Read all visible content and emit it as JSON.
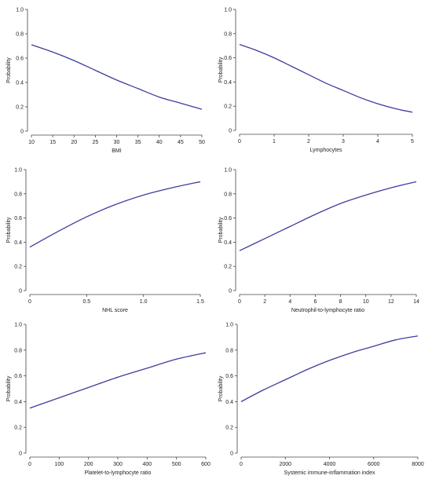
{
  "chart_data": [
    {
      "type": "line",
      "xlabel": "BMI",
      "ylabel": "Probability",
      "xlim": [
        10,
        50
      ],
      "ylim": [
        0,
        1.0
      ],
      "xticks": [
        "10",
        "15",
        "20",
        "25",
        "30",
        "35",
        "40",
        "45",
        "50"
      ],
      "yticks": [
        "0",
        "0.2",
        "0.4",
        "0.6",
        "0.8",
        "1.0"
      ],
      "series": [
        {
          "x": [
            10,
            15,
            20,
            25,
            30,
            35,
            40,
            45,
            50
          ],
          "y": [
            0.71,
            0.65,
            0.58,
            0.5,
            0.42,
            0.35,
            0.28,
            0.23,
            0.18
          ]
        }
      ]
    },
    {
      "type": "line",
      "xlabel": "Lymphocytes",
      "ylabel": "Probability",
      "xlim": [
        0,
        5
      ],
      "ylim": [
        0,
        1.0
      ],
      "xticks": [
        "0",
        "1",
        "2",
        "3",
        "4",
        "5"
      ],
      "yticks": [
        "0",
        "0.2",
        "0.4",
        "0.6",
        "0.8",
        "1.0"
      ],
      "series": [
        {
          "x": [
            0,
            0.5,
            1,
            1.5,
            2,
            2.5,
            3,
            3.5,
            4,
            4.5,
            5
          ],
          "y": [
            0.71,
            0.66,
            0.6,
            0.53,
            0.46,
            0.39,
            0.33,
            0.27,
            0.22,
            0.18,
            0.15
          ]
        }
      ]
    },
    {
      "type": "line",
      "xlabel": "NHL score",
      "ylabel": "Probability",
      "xlim": [
        0,
        1.5
      ],
      "ylim": [
        0,
        1.0
      ],
      "xticks": [
        "0",
        "0.5",
        "1.0",
        "1.5"
      ],
      "yticks": [
        "0",
        "0.2",
        "0.4",
        "0.6",
        "0.8",
        "1.0"
      ],
      "series": [
        {
          "x": [
            0,
            0.25,
            0.5,
            0.75,
            1.0,
            1.25,
            1.5
          ],
          "y": [
            0.36,
            0.49,
            0.61,
            0.71,
            0.79,
            0.85,
            0.9
          ]
        }
      ]
    },
    {
      "type": "line",
      "xlabel": "Neutrophil-to-lymphocyte ratio",
      "ylabel": "Probability",
      "xlim": [
        0,
        14
      ],
      "ylim": [
        0,
        1.0
      ],
      "xticks": [
        "0",
        "2",
        "4",
        "6",
        "8",
        "10",
        "12",
        "14"
      ],
      "yticks": [
        "0",
        "0.2",
        "0.4",
        "0.6",
        "0.8",
        "1.0"
      ],
      "series": [
        {
          "x": [
            0,
            2,
            4,
            6,
            8,
            10,
            12,
            14
          ],
          "y": [
            0.33,
            0.43,
            0.53,
            0.63,
            0.72,
            0.79,
            0.85,
            0.9
          ]
        }
      ]
    },
    {
      "type": "line",
      "xlabel": "Platelet-to-lymphocyte ratio",
      "ylabel": "Probability",
      "xlim": [
        0,
        600
      ],
      "ylim": [
        0,
        1.0
      ],
      "xticks": [
        "0",
        "100",
        "200",
        "300",
        "400",
        "500",
        "600"
      ],
      "yticks": [
        "0",
        "0.2",
        "0.4",
        "0.6",
        "0.8",
        "1.0"
      ],
      "series": [
        {
          "x": [
            0,
            100,
            200,
            300,
            400,
            500,
            600
          ],
          "y": [
            0.35,
            0.43,
            0.51,
            0.59,
            0.66,
            0.73,
            0.78
          ]
        }
      ]
    },
    {
      "type": "line",
      "xlabel": "Systemic immune-inflammation index",
      "ylabel": "Probability",
      "xlim": [
        0,
        8000
      ],
      "ylim": [
        0,
        1.0
      ],
      "xticks": [
        "0",
        "2000",
        "4000",
        "6000",
        "8000"
      ],
      "yticks": [
        "0",
        "0.2",
        "0.4",
        "0.6",
        "0.8",
        "1.0"
      ],
      "series": [
        {
          "x": [
            0,
            1000,
            2000,
            3000,
            4000,
            5000,
            6000,
            7000,
            8000
          ],
          "y": [
            0.4,
            0.49,
            0.57,
            0.65,
            0.72,
            0.78,
            0.83,
            0.88,
            0.91
          ]
        }
      ]
    }
  ]
}
